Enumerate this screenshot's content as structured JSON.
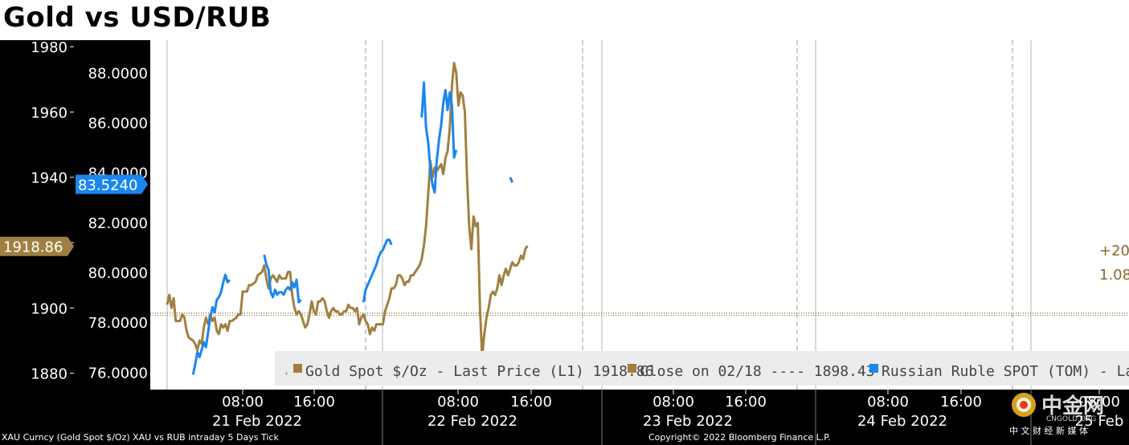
{
  "title": "Gold vs USD/RUB",
  "footer": {
    "source_left": "XAU Curncy (Gold Spot  $/Oz) XAU vs RUB intraday 5 Days  Tick",
    "copyright": "Copyright© 2022 Bloomberg Finance L.P."
  },
  "logo": {
    "cn": "中金网",
    "en": "CNGOLD.ORG",
    "sub": "中 文 财 经 新 媒 体"
  },
  "colors": {
    "gold": "#a08040",
    "rub": "#1a86f0",
    "close_line": "#8a6a2a",
    "panel_bg": "#000000",
    "plot_bg": "#ffffff",
    "legend_bg": "#ececec"
  },
  "chart_data": {
    "type": "line",
    "title": "Gold vs USD/RUB",
    "x_ticks": [
      {
        "time": "08:00",
        "date": "21 Feb 2022"
      },
      {
        "time": "16:00",
        "date": ""
      },
      {
        "time": "08:00",
        "date": "22 Feb 2022"
      },
      {
        "time": "16:00",
        "date": ""
      },
      {
        "time": "08:00",
        "date": "23 Feb 2022"
      },
      {
        "time": "16:00",
        "date": ""
      },
      {
        "time": "08:00",
        "date": "24 Feb 2022"
      },
      {
        "time": "16:00",
        "date": ""
      },
      {
        "time": "08:00",
        "date": "25 Feb"
      }
    ],
    "left_axis": {
      "name": "Gold Spot $/Oz",
      "ylim": [
        1875,
        1982
      ],
      "ticks": [
        1880,
        1900,
        1920,
        1940,
        1960,
        1980
      ]
    },
    "right_axis": {
      "name": "USD/RUB",
      "ylim": [
        75.3,
        89.3
      ],
      "ticks": [
        "76.0000",
        "78.0000",
        "80.0000",
        "82.0000",
        "84.0000",
        "86.0000",
        "88.0000"
      ]
    },
    "markers": {
      "gold_last": "1918.86",
      "rub_last": "83.5240",
      "change_line1": "+20",
      "change_line2": "1.08"
    },
    "close_level": 1898.43,
    "legend": [
      {
        "label": "Gold Spot $/Oz - Last Price (L1) 1918.86",
        "color": "#a08040"
      },
      {
        "label": "Close on 02/18 ---- 1898.43",
        "color": "#a08040"
      },
      {
        "label": "Russian Ruble SPOT (TOM) - Last",
        "color": "#1a86f0"
      }
    ],
    "series": [
      {
        "name": "Gold Spot $/Oz",
        "axis": "left",
        "color": "#a08040",
        "points": [
          [
            0.0,
            1901
          ],
          [
            0.01,
            1904
          ],
          [
            0.02,
            1900
          ],
          [
            0.03,
            1903
          ],
          [
            0.04,
            1896
          ],
          [
            0.06,
            1896
          ],
          [
            0.07,
            1898
          ],
          [
            0.08,
            1897
          ],
          [
            0.09,
            1893
          ],
          [
            0.1,
            1891
          ],
          [
            0.12,
            1890
          ],
          [
            0.13,
            1889
          ],
          [
            0.14,
            1887
          ],
          [
            0.15,
            1890
          ],
          [
            0.16,
            1889
          ],
          [
            0.17,
            1894
          ],
          [
            0.18,
            1897
          ],
          [
            0.19,
            1895
          ],
          [
            0.2,
            1898
          ],
          [
            0.21,
            1896
          ],
          [
            0.22,
            1897
          ],
          [
            0.23,
            1893
          ],
          [
            0.24,
            1892
          ],
          [
            0.25,
            1895
          ],
          [
            0.26,
            1894
          ],
          [
            0.27,
            1895
          ],
          [
            0.28,
            1893
          ],
          [
            0.29,
            1896
          ],
          [
            0.3,
            1896
          ],
          [
            0.32,
            1897
          ],
          [
            0.33,
            1898
          ],
          [
            0.34,
            1898
          ],
          [
            0.35,
            1905
          ],
          [
            0.36,
            1905
          ],
          [
            0.37,
            1905
          ],
          [
            0.38,
            1907
          ],
          [
            0.39,
            1907
          ],
          [
            0.41,
            1908
          ],
          [
            0.42,
            1910
          ],
          [
            0.44,
            1911
          ],
          [
            0.45,
            1913
          ],
          [
            0.46,
            1909
          ],
          [
            0.47,
            1906
          ],
          [
            0.48,
            1909
          ],
          [
            0.49,
            1910
          ],
          [
            0.5,
            1909
          ],
          [
            0.51,
            1908
          ],
          [
            0.52,
            1910
          ],
          [
            0.53,
            1909
          ],
          [
            0.55,
            1909
          ],
          [
            0.56,
            1911
          ],
          [
            0.57,
            1911
          ],
          [
            0.58,
            1904
          ],
          [
            0.59,
            1900
          ],
          [
            0.6,
            1898
          ],
          [
            0.61,
            1899
          ],
          [
            0.62,
            1898
          ],
          [
            0.64,
            1894
          ],
          [
            0.65,
            1895
          ],
          [
            0.66,
            1898
          ],
          [
            0.67,
            1902
          ],
          [
            0.68,
            1899
          ],
          [
            0.69,
            1898
          ],
          [
            0.7,
            1902
          ],
          [
            0.71,
            1902
          ],
          [
            0.72,
            1903
          ],
          [
            0.73,
            1902
          ],
          [
            0.74,
            1899
          ],
          [
            0.75,
            1897
          ],
          [
            0.76,
            1899
          ],
          [
            0.77,
            1900
          ],
          [
            0.78,
            1899
          ],
          [
            0.79,
            1899
          ],
          [
            0.8,
            1898
          ],
          [
            0.81,
            1898
          ],
          [
            0.82,
            1899
          ],
          [
            0.83,
            1899
          ],
          [
            0.84,
            1901
          ],
          [
            0.85,
            1900
          ],
          [
            0.86,
            1900
          ],
          [
            0.87,
            1899
          ],
          [
            0.88,
            1900
          ],
          [
            0.89,
            1895
          ],
          [
            0.9,
            1897
          ],
          [
            0.91,
            1898
          ],
          [
            0.92,
            1896
          ],
          [
            0.93,
            1895
          ],
          [
            0.94,
            1892
          ],
          [
            0.95,
            1894
          ],
          [
            0.96,
            1893
          ],
          [
            0.97,
            1895
          ],
          [
            0.98,
            1895
          ],
          [
            0.99,
            1895
          ],
          [
            1.0,
            1895
          ],
          [
            1.01,
            1899
          ],
          [
            1.02,
            1901
          ],
          [
            1.03,
            1903
          ],
          [
            1.04,
            1906
          ],
          [
            1.05,
            1906
          ],
          [
            1.06,
            1907
          ],
          [
            1.07,
            1910
          ],
          [
            1.08,
            1910
          ],
          [
            1.09,
            1909
          ],
          [
            1.1,
            1907
          ],
          [
            1.11,
            1908
          ],
          [
            1.12,
            1908
          ],
          [
            1.13,
            1910
          ],
          [
            1.14,
            1910
          ],
          [
            1.15,
            1911
          ],
          [
            1.16,
            1912
          ],
          [
            1.17,
            1913
          ],
          [
            1.18,
            1915
          ],
          [
            1.19,
            1919
          ],
          [
            1.2,
            1925
          ],
          [
            1.21,
            1935
          ],
          [
            1.22,
            1945
          ],
          [
            1.23,
            1940
          ],
          [
            1.24,
            1943
          ],
          [
            1.25,
            1942
          ],
          [
            1.26,
            1943
          ],
          [
            1.27,
            1944
          ],
          [
            1.28,
            1941
          ],
          [
            1.29,
            1946
          ],
          [
            1.3,
            1948
          ],
          [
            1.31,
            1955
          ],
          [
            1.32,
            1968
          ],
          [
            1.33,
            1975
          ],
          [
            1.34,
            1972
          ],
          [
            1.35,
            1962
          ],
          [
            1.36,
            1966
          ],
          [
            1.37,
            1965
          ],
          [
            1.38,
            1960
          ],
          [
            1.39,
            1940
          ],
          [
            1.4,
            1925
          ],
          [
            1.41,
            1918
          ],
          [
            1.42,
            1928
          ],
          [
            1.43,
            1925
          ],
          [
            1.44,
            1926
          ],
          [
            1.45,
            1900
          ],
          [
            1.46,
            1885
          ],
          [
            1.47,
            1892
          ],
          [
            1.48,
            1897
          ],
          [
            1.49,
            1900
          ],
          [
            1.5,
            1904
          ],
          [
            1.51,
            1905
          ],
          [
            1.52,
            1904
          ],
          [
            1.53,
            1906
          ],
          [
            1.54,
            1910
          ],
          [
            1.55,
            1907
          ],
          [
            1.56,
            1910
          ],
          [
            1.57,
            1912
          ],
          [
            1.58,
            1910
          ],
          [
            1.59,
            1912
          ],
          [
            1.6,
            1914
          ],
          [
            1.61,
            1913
          ],
          [
            1.62,
            1913
          ],
          [
            1.63,
            1914
          ],
          [
            1.64,
            1916
          ],
          [
            1.65,
            1915
          ],
          [
            1.66,
            1918
          ],
          [
            1.67,
            1919
          ]
        ]
      },
      {
        "name": "Russian Ruble SPOT (TOM)",
        "axis": "right",
        "color": "#1a86f0",
        "segments": [
          [
            [
              0.12,
              75.9
            ],
            [
              0.13,
              76.3
            ],
            [
              0.14,
              76.8
            ],
            [
              0.15,
              76.6
            ],
            [
              0.16,
              76.9
            ],
            [
              0.17,
              77.2
            ],
            [
              0.18,
              77.0
            ],
            [
              0.19,
              77.6
            ],
            [
              0.2,
              78.2
            ],
            [
              0.21,
              78.6
            ],
            [
              0.22,
              78.4
            ],
            [
              0.23,
              78.9
            ],
            [
              0.24,
              79.0
            ],
            [
              0.25,
              79.2
            ],
            [
              0.26,
              79.6
            ],
            [
              0.27,
              79.9
            ],
            [
              0.28,
              79.6
            ],
            [
              0.29,
              79.7
            ]
          ],
          [
            [
              0.45,
              80.7
            ],
            [
              0.46,
              80.3
            ],
            [
              0.47,
              80.1
            ],
            [
              0.48,
              79.2
            ],
            [
              0.49,
              79.0
            ],
            [
              0.5,
              79.3
            ],
            [
              0.51,
              79.1
            ],
            [
              0.52,
              79.2
            ],
            [
              0.53,
              79.2
            ],
            [
              0.54,
              79.1
            ],
            [
              0.55,
              79.3
            ],
            [
              0.56,
              79.4
            ],
            [
              0.57,
              79.3
            ],
            [
              0.58,
              79.6
            ],
            [
              0.59,
              79.4
            ],
            [
              0.6,
              79.7
            ],
            [
              0.61,
              78.8
            ],
            [
              0.62,
              78.9
            ]
          ],
          [
            [
              0.91,
              78.8
            ],
            [
              0.92,
              79.3
            ],
            [
              0.93,
              79.5
            ],
            [
              0.94,
              79.7
            ],
            [
              0.95,
              79.9
            ],
            [
              0.96,
              80.1
            ],
            [
              0.97,
              80.3
            ],
            [
              0.98,
              80.6
            ],
            [
              0.99,
              80.8
            ],
            [
              1.0,
              80.9
            ],
            [
              1.01,
              81.1
            ],
            [
              1.02,
              81.3
            ],
            [
              1.03,
              81.3
            ],
            [
              1.04,
              81.1
            ]
          ],
          [
            [
              1.18,
              86.2
            ],
            [
              1.19,
              87.6
            ],
            [
              1.2,
              85.8
            ],
            [
              1.21,
              85.2
            ],
            [
              1.22,
              84.1
            ],
            [
              1.23,
              83.5
            ],
            [
              1.24,
              83.2
            ],
            [
              1.25,
              84.5
            ],
            [
              1.26,
              85.3
            ],
            [
              1.27,
              85.9
            ],
            [
              1.28,
              86.8
            ],
            [
              1.29,
              87.3
            ],
            [
              1.3,
              86.5
            ],
            [
              1.31,
              87.2
            ],
            [
              1.32,
              86.7
            ],
            [
              1.33,
              84.6
            ],
            [
              1.34,
              84.9
            ]
          ],
          [
            [
              1.59,
              83.8
            ],
            [
              1.6,
              83.6
            ]
          ]
        ]
      }
    ]
  }
}
